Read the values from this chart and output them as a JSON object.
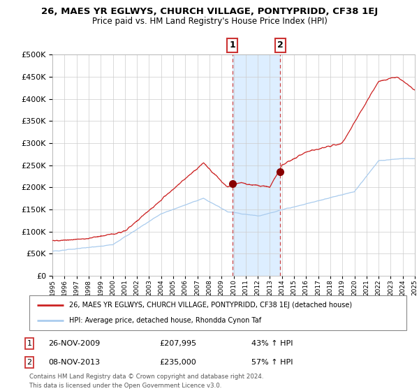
{
  "title": "26, MAES YR EGLWYS, CHURCH VILLAGE, PONTYPRIDD, CF38 1EJ",
  "subtitle": "Price paid vs. HM Land Registry's House Price Index (HPI)",
  "legend_line1": "26, MAES YR EGLWYS, CHURCH VILLAGE, PONTYPRIDD, CF38 1EJ (detached house)",
  "legend_line2": "HPI: Average price, detached house, Rhondda Cynon Taf",
  "transaction1_date": "26-NOV-2009",
  "transaction1_price": 207995,
  "transaction1_hpi": "43% ↑ HPI",
  "transaction2_date": "08-NOV-2013",
  "transaction2_price": 235000,
  "transaction2_hpi": "57% ↑ HPI",
  "footer": "Contains HM Land Registry data © Crown copyright and database right 2024.\nThis data is licensed under the Open Government Licence v3.0.",
  "hpi_color": "#aaccee",
  "price_color": "#cc2222",
  "marker_color": "#880000",
  "bg_color": "#ffffff",
  "grid_color": "#cccccc",
  "highlight_color": "#ddeeff",
  "dashed_line_color": "#cc4444",
  "ylim": [
    0,
    500000
  ],
  "yticks": [
    0,
    50000,
    100000,
    150000,
    200000,
    250000,
    300000,
    350000,
    400000,
    450000,
    500000
  ],
  "start_year": 1995,
  "end_year": 2025,
  "transaction1_year": 2009.9,
  "transaction2_year": 2013.85
}
